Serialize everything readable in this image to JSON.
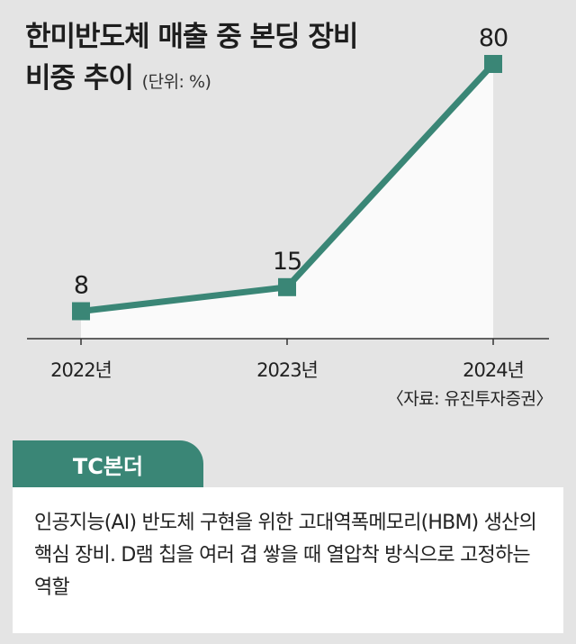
{
  "title": {
    "line1": "한미반도체 매출 중 본딩 장비",
    "line2": "비중 추이",
    "unit": "(단위: %)"
  },
  "colors": {
    "line": "#3a8676",
    "area": "#fafafa",
    "background": "#e4e4e4",
    "gridline": "#333333"
  },
  "chart_data": {
    "type": "area",
    "categories": [
      "2022년",
      "2023년",
      "2024년"
    ],
    "series": [
      {
        "values": [
          8,
          15,
          80
        ]
      }
    ],
    "data_labels": [
      "8",
      "15",
      "80"
    ],
    "ylim": [
      0,
      80
    ],
    "grid": false,
    "legend": "none"
  },
  "source": "〈자료: 유진투자증권〉",
  "info": {
    "tab_label": "TC본더",
    "description": "인공지능(AI) 반도체 구현을 위한 고대역폭메모리(HBM) 생산의 핵심 장비. D램 칩을 여러 겹 쌓을 때 열압착 방식으로 고정하는 역할"
  }
}
